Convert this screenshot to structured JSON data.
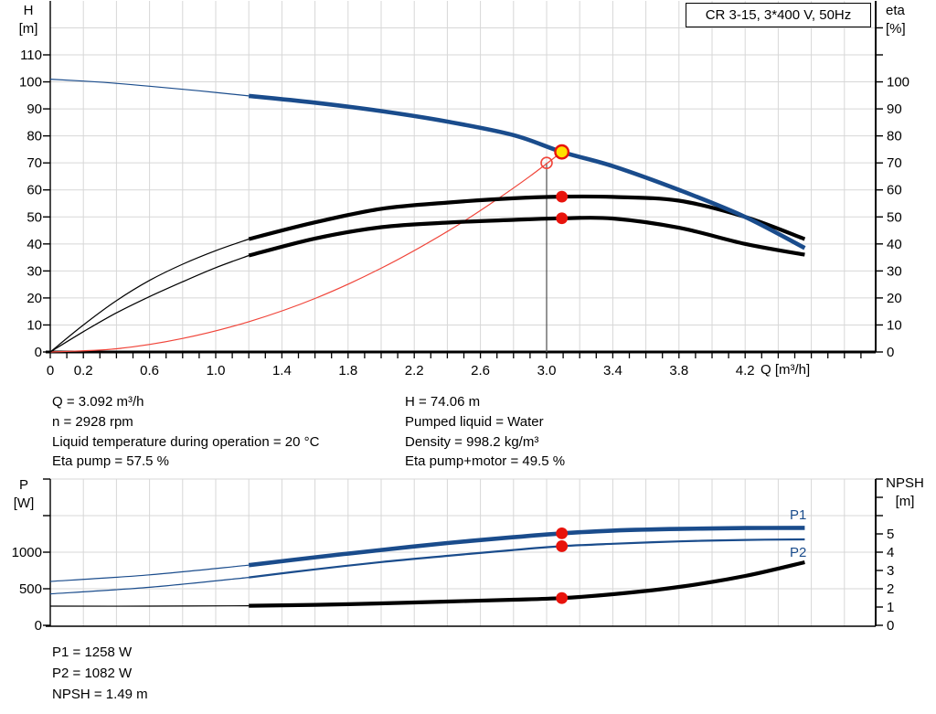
{
  "title_box": {
    "text": "CR 3-15, 3*400 V, 50Hz"
  },
  "colors": {
    "curve_blue": "#1a4c8c",
    "curve_black": "#000000",
    "curve_red": "#f0453a",
    "dot_red": "#e8130c",
    "duty_yellow": "#ffe000",
    "grid": "#d7d7d7",
    "axis": "#000000",
    "drop_line": "#5a5a5a"
  },
  "top_chart": {
    "left_axis": {
      "name": "H",
      "unit": "[m]"
    },
    "right_axis": {
      "name": "eta",
      "unit": "[%]"
    },
    "x_axis_label": "Q [m³/h]"
  },
  "bottom_chart": {
    "left_axis": {
      "name": "P",
      "unit": "[W]"
    },
    "right_axis": {
      "name": "NPSH",
      "unit": "[m]"
    },
    "p1_label": "P1",
    "p2_label": "P2"
  },
  "operating_point_info": {
    "left": [
      "Q = 3.092 m³/h",
      "n = 2928 rpm",
      "Liquid temperature during operation = 20 °C",
      "Eta pump = 57.5 %"
    ],
    "right": [
      "H = 74.06 m",
      "Pumped liquid = Water",
      "Density = 998.2 kg/m³",
      "Eta pump+motor = 49.5 %"
    ]
  },
  "power_info": [
    "P1 = 1258 W",
    "P2 = 1082 W",
    "NPSH = 1.49 m"
  ],
  "chart_data": [
    {
      "type": "line",
      "id": "hq-chart",
      "title": "CR 3-15, 3*400 V, 50Hz",
      "xlabel": "Q [m³/h]",
      "ylabel_left": "H [m]",
      "ylabel_right": "eta [%]",
      "x_range": [
        0,
        4.99
      ],
      "x_grid_step": 0.2,
      "x_minor_tick_step": 0.1,
      "x_tick_labels": [
        "0",
        "0.2",
        "0.6",
        "1.0",
        "1.4",
        "1.8",
        "2.2",
        "2.6",
        "3.0",
        "3.4",
        "3.8",
        "4.2"
      ],
      "y_left_range": [
        0,
        130
      ],
      "y_left_tick_labels": [
        0,
        10,
        20,
        30,
        40,
        50,
        60,
        70,
        80,
        90,
        100,
        110
      ],
      "y_right_tick_values": [
        0,
        10,
        20,
        30,
        40,
        50,
        60,
        70,
        80,
        90,
        100,
        110,
        120
      ],
      "y_right_tick_labels": [
        0,
        10,
        20,
        30,
        40,
        50,
        60,
        70,
        80,
        90,
        100
      ],
      "grid": true,
      "series": [
        {
          "name": "system-curve",
          "color": "red",
          "width": "thin",
          "points": [
            [
              0,
              0
            ],
            [
              0.4,
              1.2
            ],
            [
              0.8,
              5.0
            ],
            [
              1.2,
              11.2
            ],
            [
              1.6,
              19.8
            ],
            [
              2.0,
              31.0
            ],
            [
              2.4,
              44.6
            ],
            [
              2.7,
              56.5
            ],
            [
              2.9,
              65.1
            ],
            [
              3.092,
              74.06
            ]
          ]
        },
        {
          "name": "eta-pump-extended",
          "color": "black",
          "width": "thin",
          "points": [
            [
              0,
              0
            ],
            [
              0.2,
              10
            ],
            [
              0.4,
              19
            ],
            [
              0.6,
              26.5
            ],
            [
              0.8,
              32.5
            ],
            [
              1.0,
              37.5
            ],
            [
              1.2,
              41.8
            ]
          ]
        },
        {
          "name": "eta-pump",
          "color": "black",
          "width": "thick",
          "points": [
            [
              1.2,
              41.8
            ],
            [
              1.6,
              48
            ],
            [
              2.0,
              53
            ],
            [
              2.4,
              55.3
            ],
            [
              2.8,
              56.9
            ],
            [
              3.092,
              57.5
            ],
            [
              3.4,
              57.4
            ],
            [
              3.8,
              56
            ],
            [
              4.2,
              50
            ],
            [
              4.56,
              41.8
            ]
          ]
        },
        {
          "name": "eta-pump-motor-extended",
          "color": "black",
          "width": "thin",
          "points": [
            [
              0,
              0
            ],
            [
              0.2,
              7.5
            ],
            [
              0.4,
              14.5
            ],
            [
              0.6,
              20.5
            ],
            [
              0.8,
              26
            ],
            [
              1.0,
              31.2
            ],
            [
              1.2,
              35.7
            ]
          ]
        },
        {
          "name": "eta-pump-motor",
          "color": "black",
          "width": "thick",
          "points": [
            [
              1.2,
              35.7
            ],
            [
              1.6,
              42
            ],
            [
              2.0,
              46.2
            ],
            [
              2.4,
              47.9
            ],
            [
              2.8,
              48.9
            ],
            [
              3.092,
              49.5
            ],
            [
              3.4,
              49.4
            ],
            [
              3.8,
              46
            ],
            [
              4.2,
              40
            ],
            [
              4.56,
              36
            ]
          ]
        },
        {
          "name": "pump-head-extended",
          "color": "blue",
          "width": "thin",
          "points": [
            [
              0,
              101
            ],
            [
              0.3,
              99.9
            ],
            [
              0.6,
              98.4
            ],
            [
              0.9,
              96.7
            ],
            [
              1.2,
              94.8
            ]
          ]
        },
        {
          "name": "pump-head",
          "color": "blue",
          "width": "thick",
          "points": [
            [
              1.2,
              94.8
            ],
            [
              1.6,
              92.3
            ],
            [
              2.0,
              89.2
            ],
            [
              2.4,
              85.3
            ],
            [
              2.8,
              80.3
            ],
            [
              3.092,
              74.06
            ],
            [
              3.4,
              68.8
            ],
            [
              3.8,
              60.0
            ],
            [
              4.2,
              50.0
            ],
            [
              4.56,
              38.5
            ]
          ]
        }
      ],
      "drop_line": {
        "q": 3.0,
        "value": 70.0
      },
      "markers": [
        {
          "q": 3.0,
          "value": 70.0,
          "style": "target-point"
        },
        {
          "q": 3.092,
          "value": 74.06,
          "style": "duty-point"
        },
        {
          "q": 3.092,
          "value": 57.5,
          "style": "red-dot"
        },
        {
          "q": 3.092,
          "value": 49.5,
          "style": "red-dot"
        }
      ]
    },
    {
      "type": "line",
      "id": "power-npsh-chart",
      "xlabel": "Q [m³/h]",
      "ylabel_left": "P [W]",
      "ylabel_right": "NPSH [m]",
      "x_range": [
        0,
        4.99
      ],
      "x_grid_step": 0.2,
      "y_left_range": [
        0,
        2000
      ],
      "y_left_tick_values": [
        0,
        500,
        1000,
        1500,
        2000
      ],
      "y_left_tick_labels": [
        0,
        500,
        1000
      ],
      "y_right_range": [
        0,
        8
      ],
      "y_right_tick_values": [
        0,
        1,
        2,
        3,
        4,
        5,
        6,
        7,
        8
      ],
      "y_right_tick_labels": [
        0,
        1,
        2,
        3,
        4,
        5
      ],
      "grid": true,
      "series": [
        {
          "name": "p1-extended",
          "color": "blue",
          "width": "thin",
          "axis": "left",
          "points": [
            [
              0,
              600
            ],
            [
              0.6,
              690
            ],
            [
              1.2,
              823
            ]
          ]
        },
        {
          "name": "p1",
          "color": "blue",
          "width": "thick",
          "axis": "left",
          "points": [
            [
              1.2,
              823
            ],
            [
              1.6,
              930
            ],
            [
              2.0,
              1030
            ],
            [
              2.4,
              1125
            ],
            [
              2.8,
              1205
            ],
            [
              3.092,
              1258
            ],
            [
              3.4,
              1295
            ],
            [
              3.8,
              1318
            ],
            [
              4.2,
              1330
            ],
            [
              4.56,
              1332
            ]
          ]
        },
        {
          "name": "p2-extended",
          "color": "blue",
          "width": "thin",
          "axis": "left",
          "points": [
            [
              0,
              430
            ],
            [
              0.6,
              520
            ],
            [
              1.2,
              655
            ]
          ]
        },
        {
          "name": "p2",
          "color": "blue",
          "width": "thin2",
          "axis": "left",
          "points": [
            [
              1.2,
              655
            ],
            [
              1.6,
              765
            ],
            [
              2.0,
              865
            ],
            [
              2.4,
              950
            ],
            [
              2.8,
              1030
            ],
            [
              3.092,
              1082
            ],
            [
              3.4,
              1115
            ],
            [
              3.8,
              1148
            ],
            [
              4.2,
              1168
            ],
            [
              4.56,
              1175
            ]
          ]
        },
        {
          "name": "npsh-extended",
          "color": "black",
          "width": "thin",
          "axis": "right",
          "points": [
            [
              0,
              1.05
            ],
            [
              0.6,
              1.05
            ],
            [
              1.2,
              1.07
            ]
          ]
        },
        {
          "name": "npsh",
          "color": "black",
          "width": "thick",
          "axis": "right",
          "points": [
            [
              1.2,
              1.07
            ],
            [
              1.6,
              1.12
            ],
            [
              2.0,
              1.2
            ],
            [
              2.4,
              1.3
            ],
            [
              2.8,
              1.4
            ],
            [
              3.092,
              1.49
            ],
            [
              3.4,
              1.7
            ],
            [
              3.8,
              2.1
            ],
            [
              4.2,
              2.7
            ],
            [
              4.56,
              3.45
            ]
          ]
        }
      ],
      "markers": [
        {
          "q": 3.092,
          "value": 1258,
          "axis": "left",
          "style": "red-dot"
        },
        {
          "q": 3.092,
          "value": 1082,
          "axis": "left",
          "style": "red-dot"
        },
        {
          "q": 3.092,
          "value": 1.49,
          "axis": "right",
          "style": "red-dot"
        }
      ]
    }
  ]
}
